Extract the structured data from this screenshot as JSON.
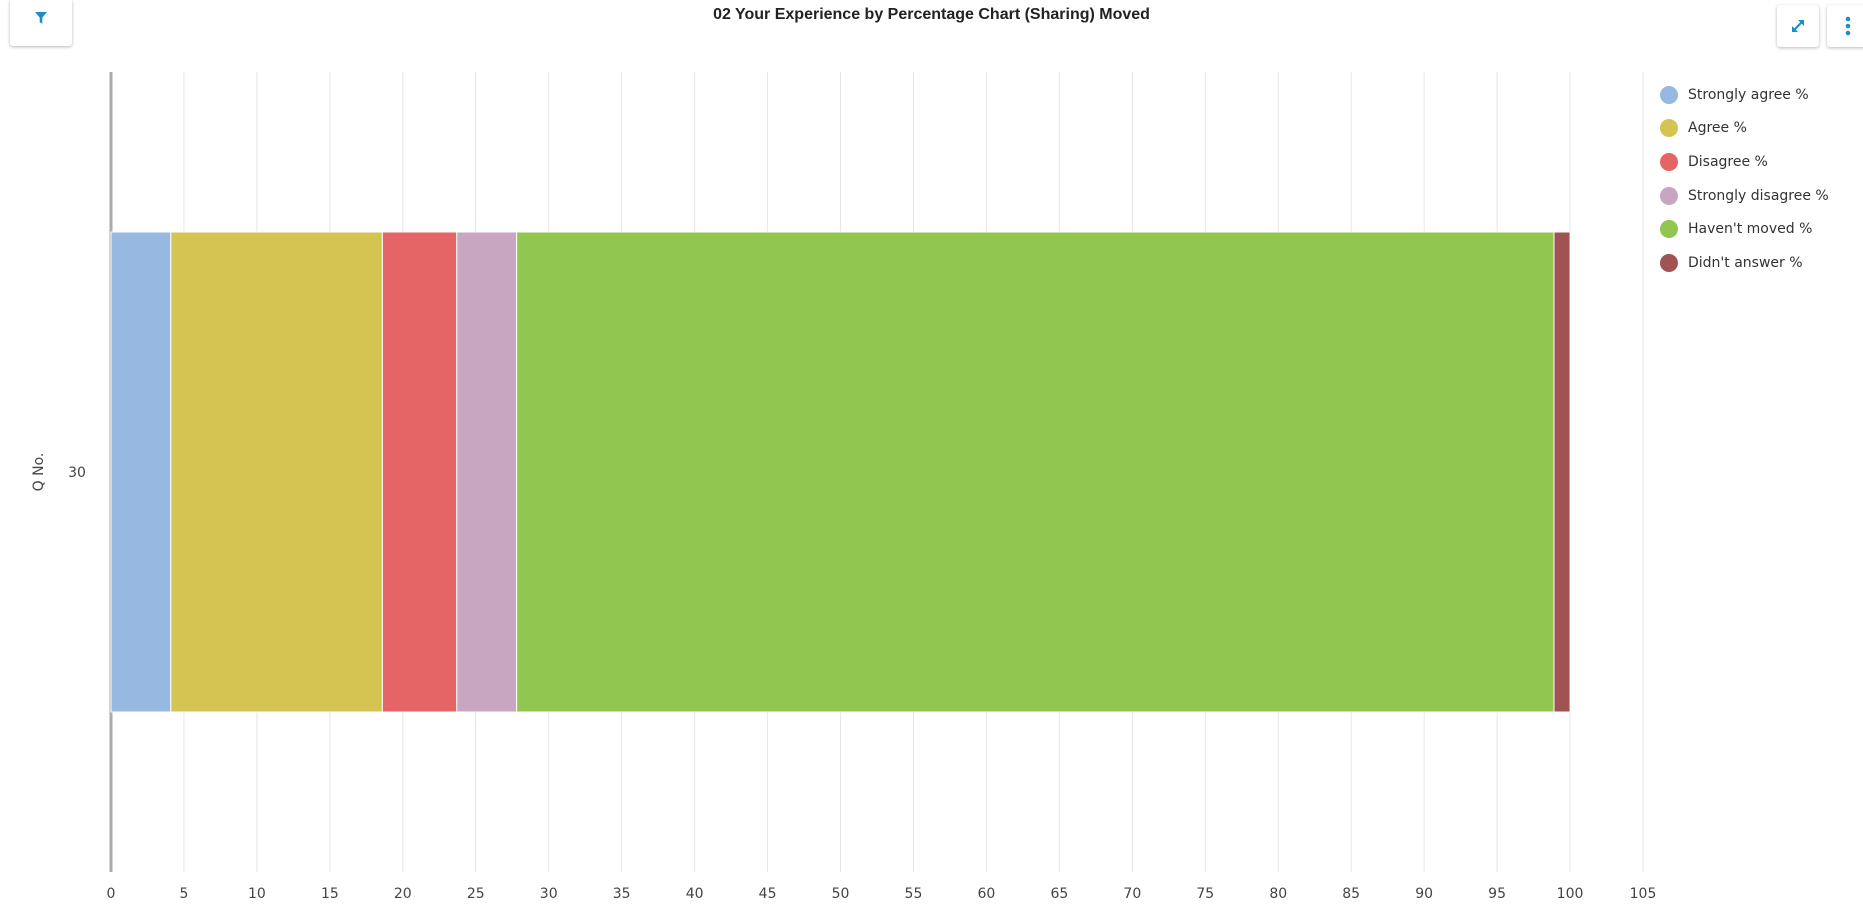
{
  "header": {
    "title": "02 Your Experience by Percentage Chart (Sharing) Moved",
    "filter_icon": "filter-icon",
    "expand_icon": "expand-icon",
    "menu_icon": "more-vertical-icon"
  },
  "colors": {
    "accent": "#1b8fc4",
    "axis": "#aaaaaa",
    "grid": "#e6e6e6"
  },
  "chart_data": {
    "type": "bar",
    "orientation": "horizontal",
    "stacked": true,
    "title": "02 Your Experience by Percentage Chart (Sharing) Moved",
    "ylabel": "Q No.",
    "xlabel": "",
    "categories": [
      "30"
    ],
    "xlim": [
      0,
      105
    ],
    "xticks": [
      "0",
      "5",
      "10",
      "15",
      "20",
      "25",
      "30",
      "35",
      "40",
      "45",
      "50",
      "55",
      "60",
      "65",
      "70",
      "75",
      "80",
      "85",
      "90",
      "95",
      "100",
      "105"
    ],
    "grid": true,
    "legend_position": "top-right",
    "series": [
      {
        "name": "Strongly agree %",
        "color": "#97b8e0",
        "values": [
          4.1
        ]
      },
      {
        "name": "Agree %",
        "color": "#d4c451",
        "values": [
          14.5
        ]
      },
      {
        "name": "Disagree %",
        "color": "#e56465",
        "values": [
          5.1
        ]
      },
      {
        "name": "Strongly disagree %",
        "color": "#c8a5c1",
        "values": [
          4.1
        ]
      },
      {
        "name": "Haven't moved %",
        "color": "#91c650",
        "values": [
          71.1
        ]
      },
      {
        "name": "Didn't answer %",
        "color": "#a05352",
        "values": [
          1.1
        ]
      }
    ]
  }
}
